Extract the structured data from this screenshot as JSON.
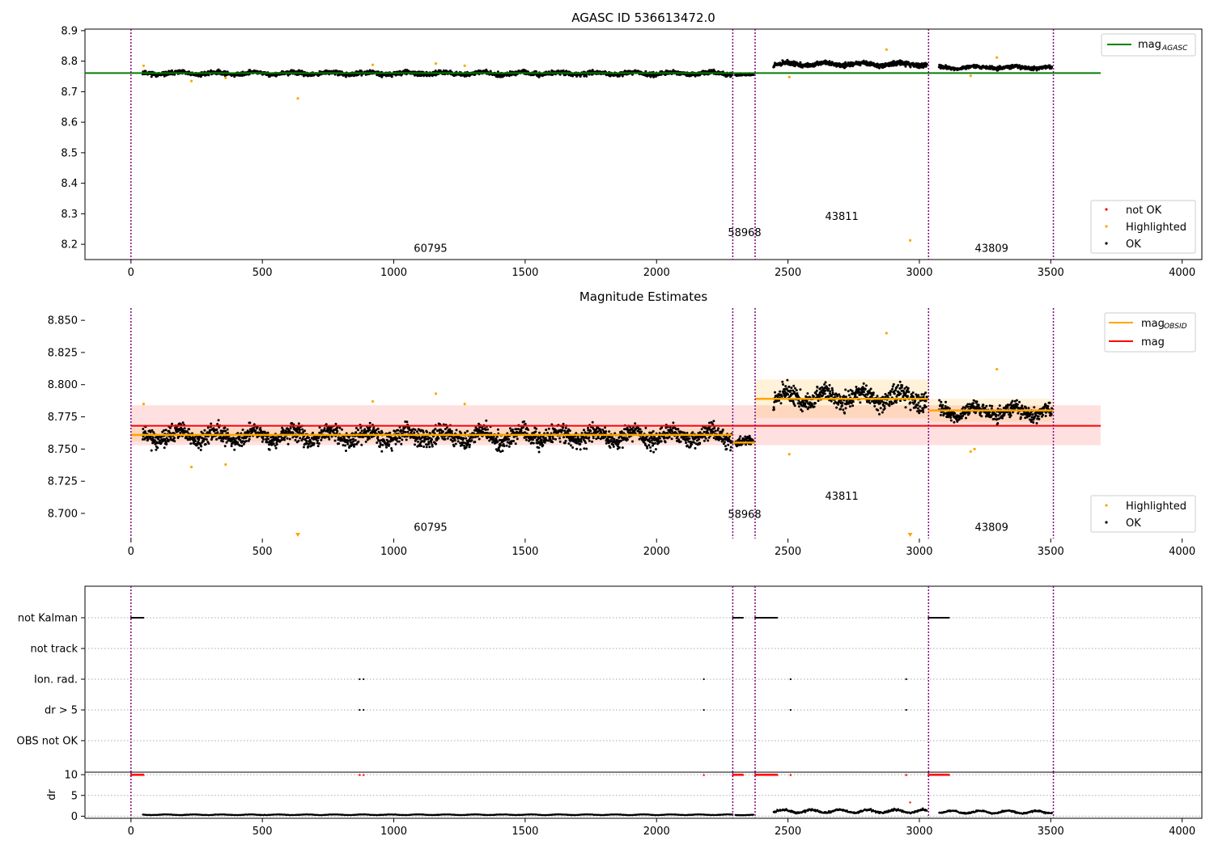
{
  "chart_data": [
    {
      "type": "scatter",
      "title": "AGASC ID 536613472.0",
      "xlim": [
        -175,
        4075
      ],
      "ylim": [
        8.15,
        8.905
      ],
      "x_ticks": [
        0,
        500,
        1000,
        1500,
        2000,
        2500,
        3000,
        3500,
        4000
      ],
      "x_tick_labels": [
        "0",
        "500",
        "1000",
        "1500",
        "2000",
        "2500",
        "3000",
        "3500",
        "4000"
      ],
      "y_ticks": [
        8.2,
        8.3,
        8.4,
        8.5,
        8.6,
        8.7,
        8.8,
        8.9
      ],
      "y_tick_labels": [
        "8.2",
        "8.3",
        "8.4",
        "8.5",
        "8.6",
        "8.7",
        "8.8",
        "8.9"
      ],
      "series": [
        {
          "name": "not OK",
          "color": "#ff0000",
          "values": []
        },
        {
          "name": "Highlighted",
          "color": "#ffa500",
          "x": [
            48,
            230,
            360,
            635,
            920,
            1160,
            1270,
            2505,
            2875,
            2965,
            3195,
            3295
          ],
          "y": [
            8.785,
            8.735,
            8.745,
            8.678,
            8.788,
            8.792,
            8.785,
            8.748,
            8.838,
            8.213,
            8.752,
            8.812
          ]
        },
        {
          "name": "OK",
          "color": "#000000",
          "segments": [
            {
              "x": [
                45,
                2290
              ],
              "mean": 8.76,
              "spread": 0.011
            },
            {
              "x": [
                2300,
                2370
              ],
              "mean": 8.755,
              "spread": 0.006
            },
            {
              "x": [
                2445,
                3030
              ],
              "mean": 8.79,
              "spread": 0.012
            },
            {
              "x": [
                3075,
                3505
              ],
              "mean": 8.779,
              "spread": 0.009
            }
          ]
        }
      ],
      "lines": [
        {
          "name": "mag_AGASC",
          "legend_label": "mag",
          "legend_sub": "AGASC",
          "color": "#008000",
          "y": 8.761,
          "x": [
            -175,
            3690
          ]
        }
      ],
      "vlines": [
        0,
        2290,
        2375,
        3035,
        3510
      ],
      "annotations": [
        {
          "text": "60795",
          "x": 1140,
          "y": 8.175
        },
        {
          "text": "58968",
          "x": 2335,
          "y": 8.227
        },
        {
          "text": "43811",
          "x": 2705,
          "y": 8.28
        },
        {
          "text": "43809",
          "x": 3275,
          "y": 8.175
        }
      ],
      "legend_top": "top-right",
      "legend_bottom": "bottom-right"
    },
    {
      "type": "scatter",
      "title": "Magnitude Estimates",
      "xlim": [
        -175,
        4075
      ],
      "ylim": [
        8.6805,
        8.8595
      ],
      "x_ticks": [
        0,
        500,
        1000,
        1500,
        2000,
        2500,
        3000,
        3500,
        4000
      ],
      "x_tick_labels": [
        "0",
        "500",
        "1000",
        "1500",
        "2000",
        "2500",
        "3000",
        "3500",
        "4000"
      ],
      "y_ticks": [
        8.7,
        8.725,
        8.75,
        8.775,
        8.8,
        8.825,
        8.85
      ],
      "y_tick_labels": [
        "8.700",
        "8.725",
        "8.750",
        "8.775",
        "8.800",
        "8.825",
        "8.850"
      ],
      "series": [
        {
          "name": "Highlighted",
          "color": "#ffa500",
          "x": [
            48,
            230,
            360,
            920,
            1160,
            1270,
            2505,
            2875,
            3195,
            3295,
            3210
          ],
          "y": [
            8.785,
            8.736,
            8.738,
            8.787,
            8.793,
            8.785,
            8.746,
            8.84,
            8.748,
            8.812,
            8.75
          ]
        },
        {
          "name": "OK",
          "color": "#000000",
          "segments": [
            {
              "x": [
                45,
                2290
              ],
              "mean": 8.76,
              "spread": 0.011
            },
            {
              "x": [
                2300,
                2370
              ],
              "mean": 8.755,
              "spread": 0.006
            },
            {
              "x": [
                2445,
                3030
              ],
              "mean": 8.79,
              "spread": 0.012
            },
            {
              "x": [
                3075,
                3505
              ],
              "mean": 8.779,
              "spread": 0.009
            }
          ]
        }
      ],
      "offscale_markers": [
        {
          "x": 635,
          "color": "#ffa500"
        },
        {
          "x": 2965,
          "color": "#ffa500"
        }
      ],
      "lines": [
        {
          "name": "mag_OBSID",
          "legend_label": "mag",
          "legend_sub": "OBSID",
          "color": "#ffa500",
          "steps": [
            {
              "x": [
                0,
                2290
              ],
              "y": 8.761,
              "band": [
                8.756,
                8.766
              ]
            },
            {
              "x": [
                2290,
                2375
              ],
              "y": 8.755,
              "band": [
                8.752,
                8.758
              ]
            },
            {
              "x": [
                2375,
                3035
              ],
              "y": 8.789,
              "band": [
                8.774,
                8.804
              ]
            },
            {
              "x": [
                3035,
                3510
              ],
              "y": 8.78,
              "band": [
                8.771,
                8.789
              ]
            }
          ]
        },
        {
          "name": "mag",
          "legend_label": "mag",
          "color": "#ff0000",
          "y": 8.768,
          "band": [
            8.753,
            8.784
          ],
          "x": [
            0,
            3690
          ]
        }
      ],
      "vlines": [
        0,
        2290,
        2375,
        3035,
        3510
      ],
      "annotations": [
        {
          "text": "60795",
          "x": 1140,
          "y": 8.6865
        },
        {
          "text": "58968",
          "x": 2335,
          "y": 8.6965
        },
        {
          "text": "43811",
          "x": 2705,
          "y": 8.7105
        },
        {
          "text": "43809",
          "x": 3275,
          "y": 8.6865
        }
      ],
      "legend_top": "top-right",
      "legend_bottom": "bottom-right"
    },
    {
      "type": "scatter",
      "title": "",
      "xlim": [
        -175,
        4075
      ],
      "flag_labels": [
        "not Kalman",
        "not track",
        "Ion. rad.",
        "dr > 5",
        "OBS not OK"
      ],
      "flags": [
        {
          "label": "not Kalman",
          "ranges": [
            [
              0,
              50
            ],
            [
              2290,
              2330
            ],
            [
              2375,
              2460
            ],
            [
              3035,
              3115
            ]
          ],
          "points": []
        },
        {
          "label": "not track",
          "ranges": [],
          "points": []
        },
        {
          "label": "Ion. rad.",
          "ranges": [],
          "points": [
            870,
            885,
            2180,
            2510,
            2950
          ]
        },
        {
          "label": "dr > 5",
          "ranges": [],
          "points": [
            870,
            885,
            2180,
            2510,
            2950
          ]
        },
        {
          "label": "OBS not OK",
          "ranges": [],
          "points": []
        }
      ]
    },
    {
      "type": "scatter",
      "title": "",
      "ylabel": "dr",
      "xlim": [
        -175,
        4075
      ],
      "ylim": [
        -0.5,
        10.6
      ],
      "x_ticks": [
        0,
        500,
        1000,
        1500,
        2000,
        2500,
        3000,
        3500,
        4000
      ],
      "x_tick_labels": [
        "0",
        "500",
        "1000",
        "1500",
        "2000",
        "2500",
        "3000",
        "3500",
        "4000"
      ],
      "y_ticks": [
        0,
        5,
        10
      ],
      "y_tick_labels": [
        "0",
        "5",
        "10"
      ],
      "capped_value": 10,
      "capped_ranges": [
        [
          0,
          50
        ],
        [
          2290,
          2330
        ],
        [
          2375,
          2460
        ],
        [
          3035,
          3115
        ]
      ],
      "capped_points": [
        870,
        885,
        2180,
        2510,
        2950
      ],
      "dr_segments": [
        {
          "x": [
            45,
            2290
          ],
          "mean": 0.35,
          "spread": 0.12
        },
        {
          "x": [
            2300,
            2370
          ],
          "mean": 0.3,
          "spread": 0.1
        },
        {
          "x": [
            2445,
            3030
          ],
          "mean": 1.2,
          "spread": 0.6
        },
        {
          "x": [
            3075,
            3505
          ],
          "mean": 1.0,
          "spread": 0.5
        }
      ],
      "red_outliers": [
        {
          "x": 2965,
          "y": 3.3
        }
      ]
    }
  ]
}
